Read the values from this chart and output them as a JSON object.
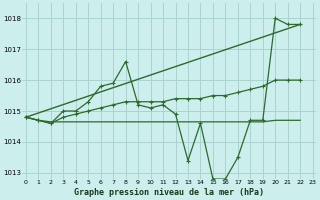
{
  "background_color": "#cceeed",
  "grid_color": "#aad4d0",
  "line_color": "#2d6a2d",
  "title": "Graphe pression niveau de la mer (hPa)",
  "ylim": [
    1012.8,
    1018.5
  ],
  "yticks": [
    1013,
    1014,
    1015,
    1016,
    1017,
    1018
  ],
  "xlim": [
    -0.3,
    23.3
  ],
  "xticks": [
    0,
    1,
    2,
    3,
    4,
    5,
    6,
    7,
    8,
    9,
    10,
    11,
    12,
    13,
    14,
    15,
    16,
    17,
    18,
    19,
    20,
    21,
    22,
    23
  ],
  "series": [
    {
      "x": [
        0,
        1,
        2,
        3,
        4,
        5,
        6,
        7,
        8,
        9,
        10,
        11,
        12,
        13,
        14,
        15,
        16,
        17,
        18,
        19,
        20,
        21,
        22
      ],
      "y": [
        1014.8,
        1014.7,
        1014.6,
        1015.0,
        1015.0,
        1015.3,
        1015.8,
        1015.9,
        1016.6,
        1015.2,
        1015.1,
        1015.2,
        1014.9,
        1013.4,
        1014.6,
        1012.8,
        1012.8,
        1013.5,
        1014.7,
        1014.7,
        1018.0,
        1017.8,
        1017.8
      ],
      "marker": true,
      "lw": 0.9
    },
    {
      "x": [
        0,
        22
      ],
      "y": [
        1014.8,
        1017.8
      ],
      "marker": false,
      "lw": 1.0
    },
    {
      "x": [
        0,
        1,
        2,
        3,
        4,
        5,
        6,
        7,
        8,
        9,
        10,
        11,
        12,
        13,
        14,
        15,
        16,
        17,
        18,
        19,
        20,
        21,
        22
      ],
      "y": [
        1014.8,
        1014.7,
        1014.6,
        1014.8,
        1014.9,
        1015.0,
        1015.1,
        1015.2,
        1015.3,
        1015.3,
        1015.3,
        1015.3,
        1015.4,
        1015.4,
        1015.4,
        1015.5,
        1015.5,
        1015.6,
        1015.7,
        1015.8,
        1016.0,
        1016.0,
        1016.0
      ],
      "marker": true,
      "lw": 0.9
    },
    {
      "x": [
        0,
        1,
        2,
        3,
        4,
        5,
        6,
        7,
        8,
        9,
        10,
        11,
        12,
        13,
        14,
        15,
        16,
        17,
        18,
        19,
        20,
        21,
        22
      ],
      "y": [
        1014.8,
        1014.7,
        1014.65,
        1014.65,
        1014.65,
        1014.65,
        1014.65,
        1014.65,
        1014.65,
        1014.65,
        1014.65,
        1014.65,
        1014.65,
        1014.65,
        1014.65,
        1014.65,
        1014.65,
        1014.65,
        1014.65,
        1014.65,
        1014.7,
        1014.7,
        1014.7
      ],
      "marker": false,
      "lw": 0.9
    }
  ]
}
